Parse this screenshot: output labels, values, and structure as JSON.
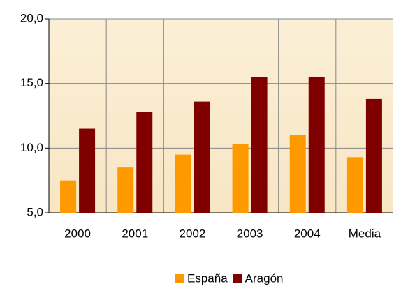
{
  "chart_data": {
    "type": "bar",
    "categories": [
      "2000",
      "2001",
      "2002",
      "2003",
      "2004",
      "Media"
    ],
    "series": [
      {
        "name": "España",
        "color": "#ff9900",
        "values": [
          7.5,
          8.5,
          9.5,
          10.3,
          11.0,
          9.3
        ]
      },
      {
        "name": "Aragón",
        "color": "#800000",
        "values": [
          11.5,
          12.8,
          13.6,
          15.5,
          15.5,
          13.8
        ]
      }
    ],
    "ylim": [
      5,
      20
    ],
    "yticks": [
      {
        "value": 5,
        "label": "5,0"
      },
      {
        "value": 10,
        "label": "10,0"
      },
      {
        "value": 15,
        "label": "15,0"
      },
      {
        "value": 20,
        "label": "20,0"
      }
    ],
    "grid": true,
    "legend": "bottom"
  }
}
